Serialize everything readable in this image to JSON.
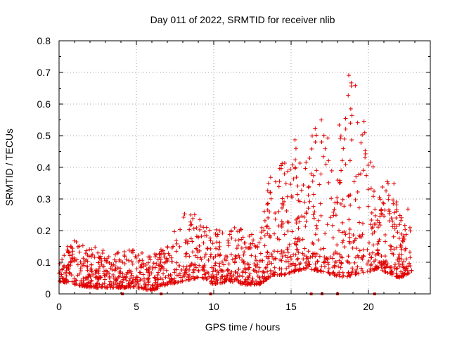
{
  "chart_data": {
    "type": "scatter",
    "title": "Day 011 of 2022, SRMTID for receiver nlib",
    "xlabel": "GPS time / hours",
    "ylabel": "SRMTID / TECUs",
    "xlim": [
      0,
      24
    ],
    "ylim": [
      0,
      0.8
    ],
    "xticks": [
      "0",
      "5",
      "10",
      "15",
      "20"
    ],
    "xtick_values": [
      0,
      5,
      10,
      15,
      20
    ],
    "yticks": [
      "0",
      "0.1",
      "0.2",
      "0.3",
      "0.4",
      "0.5",
      "0.6",
      "0.7",
      "0.8"
    ],
    "ytick_values": [
      0,
      0.1,
      0.2,
      0.3,
      0.4,
      0.5,
      0.6,
      0.7,
      0.8
    ],
    "grid": true,
    "marker": "+",
    "color": "#e00000",
    "series": [
      {
        "name": "SRMTID",
        "description": "Approximate envelope of dense scatter: baseline ~0.03-0.15 TECU from 0-13h, rising 13.5-23h with peaks near 14h (0.46), 15h (0.49), 17h (0.61), 19h (0.72), 20h (0.48), 21.5h (0.42)",
        "envelope": [
          {
            "x": 0,
            "low": 0.04,
            "high": 0.18
          },
          {
            "x": 1,
            "low": 0.03,
            "high": 0.17
          },
          {
            "x": 2,
            "low": 0.02,
            "high": 0.16
          },
          {
            "x": 3,
            "low": 0.02,
            "high": 0.14
          },
          {
            "x": 4,
            "low": 0.02,
            "high": 0.13
          },
          {
            "x": 5,
            "low": 0.02,
            "high": 0.15
          },
          {
            "x": 6,
            "low": 0.01,
            "high": 0.12
          },
          {
            "x": 7,
            "low": 0.03,
            "high": 0.16
          },
          {
            "x": 8,
            "low": 0.04,
            "high": 0.26
          },
          {
            "x": 9,
            "low": 0.05,
            "high": 0.27
          },
          {
            "x": 10,
            "low": 0.03,
            "high": 0.2
          },
          {
            "x": 11,
            "low": 0.04,
            "high": 0.22
          },
          {
            "x": 12,
            "low": 0.03,
            "high": 0.2
          },
          {
            "x": 13,
            "low": 0.03,
            "high": 0.18
          },
          {
            "x": 13.8,
            "low": 0.06,
            "high": 0.46
          },
          {
            "x": 14.5,
            "low": 0.06,
            "high": 0.41
          },
          {
            "x": 15.2,
            "low": 0.07,
            "high": 0.49
          },
          {
            "x": 16,
            "low": 0.08,
            "high": 0.45
          },
          {
            "x": 17,
            "low": 0.07,
            "high": 0.61
          },
          {
            "x": 17.7,
            "low": 0.06,
            "high": 0.4
          },
          {
            "x": 18.6,
            "low": 0.05,
            "high": 0.7
          },
          {
            "x": 19,
            "low": 0.06,
            "high": 0.72
          },
          {
            "x": 20,
            "low": 0.07,
            "high": 0.48
          },
          {
            "x": 20.6,
            "low": 0.08,
            "high": 0.33
          },
          {
            "x": 21.5,
            "low": 0.06,
            "high": 0.42
          },
          {
            "x": 22,
            "low": 0.05,
            "high": 0.25
          },
          {
            "x": 22.8,
            "low": 0.07,
            "high": 0.3
          }
        ]
      }
    ],
    "gap_markers_x": [
      4.1,
      6.6,
      9.8,
      16.3,
      17.0,
      18.0,
      20.4
    ]
  }
}
